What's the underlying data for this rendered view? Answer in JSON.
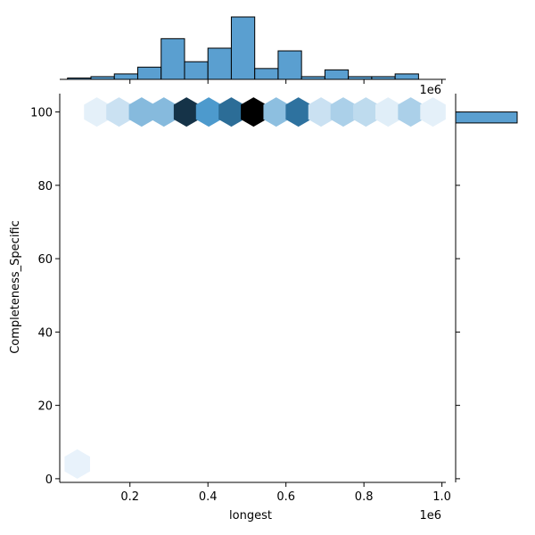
{
  "chart_data": {
    "type": "jointplot-hexbin",
    "xlabel": "longest",
    "ylabel": "Completeness_Specific",
    "x_offset_text": "1e6",
    "xlim": [
      20000,
      1010000
    ],
    "ylim": [
      -1,
      105
    ],
    "x_ticks": [
      200000,
      400000,
      600000,
      800000,
      1000000
    ],
    "x_tick_labels": [
      "0.2",
      "0.4",
      "0.6",
      "0.8",
      "1.0"
    ],
    "y_ticks": [
      0,
      20,
      40,
      60,
      80,
      100
    ],
    "y_tick_labels": [
      "0",
      "20",
      "40",
      "60",
      "80",
      "100"
    ],
    "color": "#3a8fc7",
    "hexbins": [
      {
        "x": 65000,
        "y": 4,
        "intensity": 0.04
      },
      {
        "x": 115000,
        "y": 100,
        "intensity": 0.05
      },
      {
        "x": 172000,
        "y": 100,
        "intensity": 0.12
      },
      {
        "x": 230000,
        "y": 100,
        "intensity": 0.3
      },
      {
        "x": 287000,
        "y": 100,
        "intensity": 0.3
      },
      {
        "x": 345000,
        "y": 100,
        "intensity": 0.82
      },
      {
        "x": 402000,
        "y": 100,
        "intensity": 0.45
      },
      {
        "x": 460000,
        "y": 100,
        "intensity": 0.62
      },
      {
        "x": 517000,
        "y": 100,
        "intensity": 1.0
      },
      {
        "x": 575000,
        "y": 100,
        "intensity": 0.28
      },
      {
        "x": 632000,
        "y": 100,
        "intensity": 0.6
      },
      {
        "x": 690000,
        "y": 100,
        "intensity": 0.12
      },
      {
        "x": 747000,
        "y": 100,
        "intensity": 0.2
      },
      {
        "x": 805000,
        "y": 100,
        "intensity": 0.15
      },
      {
        "x": 862000,
        "y": 100,
        "intensity": 0.06
      },
      {
        "x": 920000,
        "y": 100,
        "intensity": 0.2
      },
      {
        "x": 977000,
        "y": 100,
        "intensity": 0.05
      }
    ],
    "x_histogram": {
      "bin_edges": [
        40000,
        100000,
        160000,
        220000,
        280000,
        340000,
        400000,
        460000,
        520000,
        580000,
        640000,
        700000,
        760000,
        820000,
        880000,
        940000,
        1000000
      ],
      "counts": [
        1,
        2,
        4,
        9,
        30,
        13,
        23,
        46,
        8,
        21,
        2,
        7,
        2,
        2,
        4,
        0
      ]
    },
    "y_histogram": {
      "bin_edges": [
        97,
        100
      ],
      "counts": [
        1
      ]
    }
  }
}
